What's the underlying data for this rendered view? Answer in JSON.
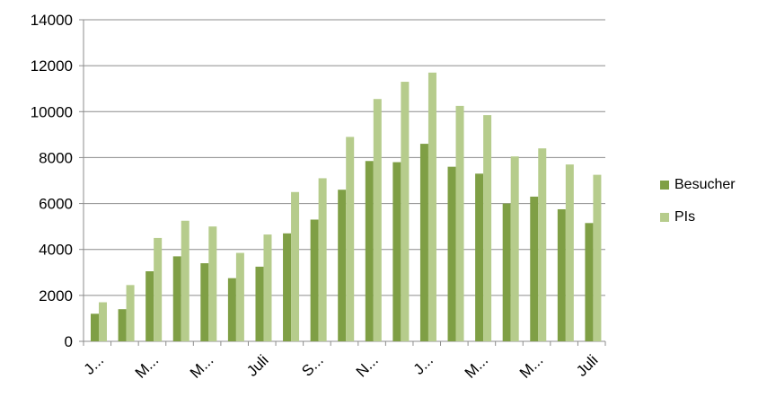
{
  "chart_data": {
    "type": "bar",
    "title": "",
    "xlabel": "",
    "ylabel": "",
    "ylim": [
      0,
      14000
    ],
    "yticks": [
      0,
      2000,
      4000,
      6000,
      8000,
      10000,
      12000,
      14000
    ],
    "grid": true,
    "legend_position": "right",
    "categories": [
      "",
      "",
      "",
      "",
      "",
      "",
      "",
      "",
      "",
      "",
      "",
      "",
      "",
      "",
      "",
      "",
      "",
      "",
      ""
    ],
    "tick_labels": [
      {
        "index": 0,
        "label": "J..."
      },
      {
        "index": 2,
        "label": "M..."
      },
      {
        "index": 4,
        "label": "M..."
      },
      {
        "index": 6,
        "label": "Juli"
      },
      {
        "index": 8,
        "label": "S..."
      },
      {
        "index": 10,
        "label": "N..."
      },
      {
        "index": 12,
        "label": "J..."
      },
      {
        "index": 14,
        "label": "M..."
      },
      {
        "index": 16,
        "label": "M..."
      },
      {
        "index": 18,
        "label": "Juli"
      }
    ],
    "series": [
      {
        "name": "Besucher",
        "color": "#7f9f45",
        "values": [
          1200,
          1400,
          3050,
          3700,
          3400,
          2750,
          3250,
          4700,
          5300,
          6600,
          7850,
          7800,
          8600,
          7600,
          7300,
          6000,
          6300,
          5750,
          5150
        ]
      },
      {
        "name": "PIs",
        "color": "#b6cc8c",
        "values": [
          1700,
          2450,
          4500,
          5250,
          5000,
          3850,
          4650,
          6500,
          7100,
          8900,
          10550,
          11300,
          11700,
          10250,
          9850,
          8050,
          8400,
          7700,
          7250
        ]
      }
    ]
  }
}
